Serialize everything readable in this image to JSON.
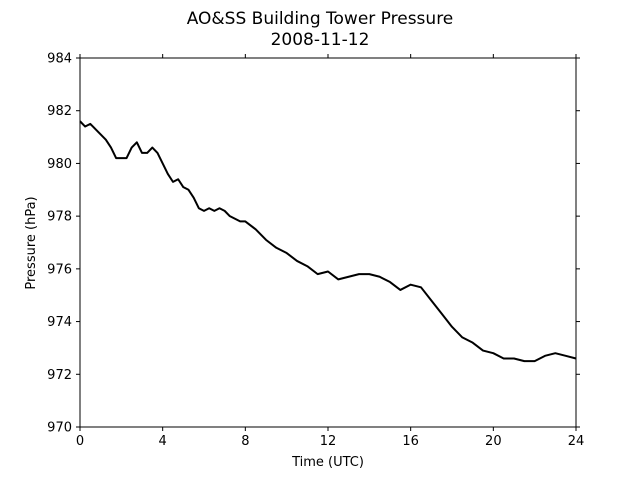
{
  "chart_data": {
    "type": "line",
    "title": "AO&SS Building Tower Pressure",
    "subtitle": "2008-11-12",
    "xlabel": "Time (UTC)",
    "ylabel": "Pressure (hPa)",
    "xlim": [
      0,
      24
    ],
    "ylim": [
      970,
      984
    ],
    "xticks": [
      0,
      4,
      8,
      12,
      16,
      20,
      24
    ],
    "yticks": [
      970,
      972,
      974,
      976,
      978,
      980,
      982,
      984
    ],
    "grid": false,
    "series": [
      {
        "color": "#000000",
        "x": [
          0.0,
          0.25,
          0.5,
          0.75,
          1.0,
          1.25,
          1.5,
          1.75,
          2.0,
          2.25,
          2.5,
          2.75,
          3.0,
          3.25,
          3.5,
          3.75,
          4.0,
          4.25,
          4.5,
          4.75,
          5.0,
          5.25,
          5.5,
          5.75,
          6.0,
          6.25,
          6.5,
          6.75,
          7.0,
          7.25,
          7.5,
          7.75,
          8.0,
          8.5,
          9.0,
          9.5,
          10.0,
          10.5,
          11.0,
          11.5,
          12.0,
          12.5,
          13.0,
          13.5,
          14.0,
          14.5,
          15.0,
          15.5,
          16.0,
          16.5,
          17.0,
          17.5,
          18.0,
          18.5,
          19.0,
          19.5,
          20.0,
          20.5,
          21.0,
          21.5,
          22.0,
          22.5,
          23.0,
          23.5,
          24.0
        ],
        "y": [
          981.6,
          981.4,
          981.5,
          981.3,
          981.1,
          980.9,
          980.6,
          980.2,
          980.2,
          980.2,
          980.6,
          980.8,
          980.4,
          980.4,
          980.6,
          980.4,
          980.0,
          979.6,
          979.3,
          979.4,
          979.1,
          979.0,
          978.7,
          978.3,
          978.2,
          978.3,
          978.2,
          978.3,
          978.2,
          978.0,
          977.9,
          977.8,
          977.8,
          977.5,
          977.1,
          976.8,
          976.6,
          976.3,
          976.1,
          975.8,
          975.9,
          975.6,
          975.7,
          975.8,
          975.8,
          975.7,
          975.5,
          975.2,
          975.4,
          975.3,
          974.8,
          974.3,
          973.8,
          973.4,
          973.2,
          972.9,
          972.8,
          972.6,
          972.6,
          972.5,
          972.5,
          972.7,
          972.8,
          972.7,
          972.6
        ]
      }
    ]
  }
}
